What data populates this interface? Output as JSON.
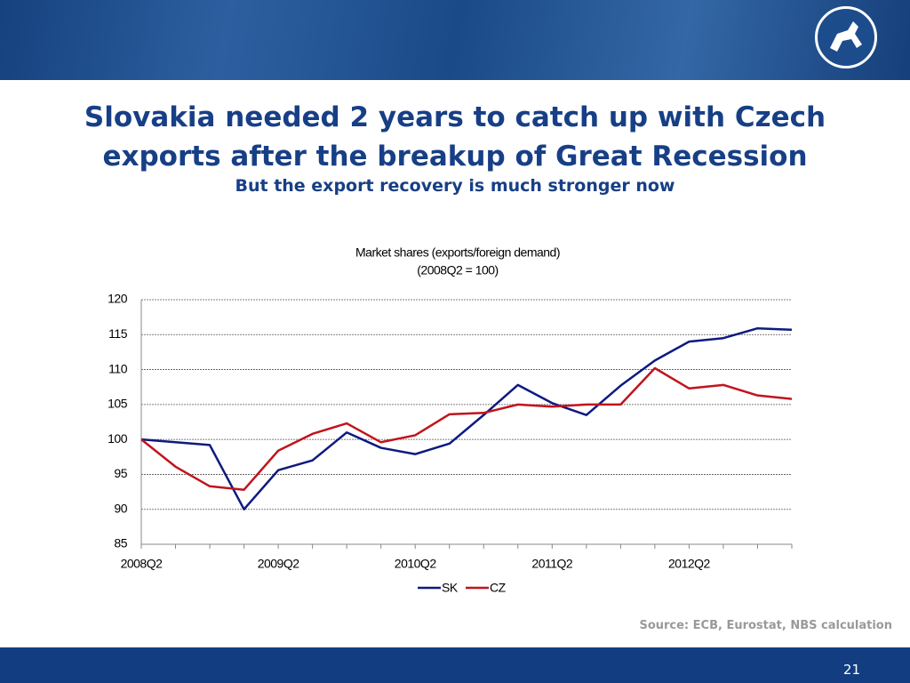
{
  "slide": {
    "title": "Slovakia needed 2 years to catch up with Czech exports after the breakup of Great Recession",
    "subtitle": "But the export recovery is much stronger now",
    "source": "Source: ECB, Eurostat, NBS calculation",
    "page_number": "21"
  },
  "chart_data": {
    "type": "line",
    "title": "Market shares (exports/foreign demand)",
    "subtitle": "(2008Q2 = 100)",
    "categories": [
      "2008Q2",
      null,
      null,
      null,
      "2009Q2",
      null,
      null,
      null,
      "2010Q2",
      null,
      null,
      null,
      "2011Q2",
      null,
      null,
      null,
      "2012Q2",
      null,
      null,
      null
    ],
    "series": [
      {
        "name": "SK",
        "color": "#0d1a80",
        "values": [
          100,
          99.6,
          99.2,
          90.0,
          95.6,
          97.0,
          101.0,
          98.8,
          97.9,
          99.4,
          103.5,
          107.8,
          105.2,
          103.5,
          107.7,
          111.3,
          114.0,
          114.5,
          115.9,
          115.7
        ]
      },
      {
        "name": "CZ",
        "color": "#c0141c",
        "values": [
          100,
          96.1,
          93.3,
          92.8,
          98.4,
          100.8,
          102.3,
          99.6,
          100.6,
          103.6,
          103.8,
          105.0,
          104.7,
          105.0,
          105.0,
          110.2,
          107.3,
          107.8,
          106.3,
          105.8
        ]
      }
    ],
    "ylim": [
      85,
      120
    ],
    "yticks": [
      85,
      90,
      95,
      100,
      105,
      110,
      115,
      120
    ],
    "grid": true,
    "legend": "bottom"
  }
}
